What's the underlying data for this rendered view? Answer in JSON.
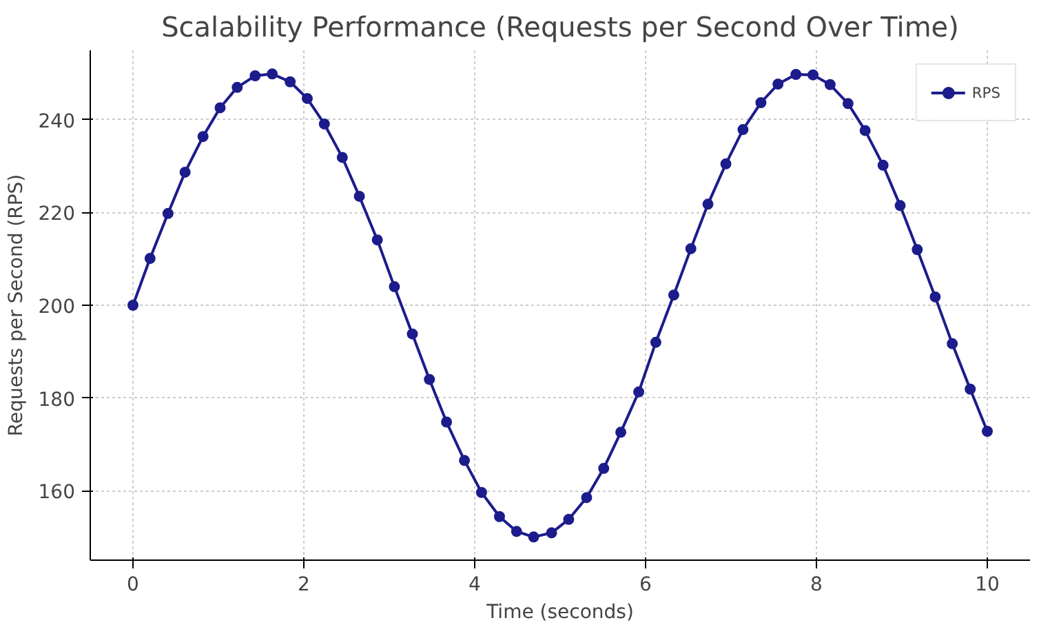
{
  "chart_data": {
    "type": "line",
    "title": "Scalability Performance (Requests per Second Over Time)",
    "xlabel": "Time (seconds)",
    "ylabel": "Requests per Second (RPS)",
    "x": [
      0,
      0.2,
      0.41,
      0.61,
      0.82,
      1.02,
      1.22,
      1.43,
      1.63,
      1.84,
      2.04,
      2.24,
      2.45,
      2.65,
      2.86,
      3.06,
      3.27,
      3.47,
      3.67,
      3.88,
      4.08,
      4.29,
      4.49,
      4.69,
      4.9,
      5.1,
      5.31,
      5.51,
      5.71,
      5.92,
      6.12,
      6.33,
      6.53,
      6.73,
      6.94,
      7.14,
      7.35,
      7.55,
      7.76,
      7.96,
      8.16,
      8.37,
      8.57,
      8.78,
      8.98,
      9.18,
      9.39,
      9.59,
      9.8,
      10
    ],
    "series": [
      {
        "name": "RPS",
        "color": "#1c1c8c",
        "values": [
          200,
          210.1,
          219.8,
          228.7,
          236.4,
          242.6,
          247,
          249.5,
          249.9,
          248.2,
          244.6,
          239.1,
          231.9,
          223.5,
          214.1,
          204,
          193.8,
          184,
          174.8,
          166.5,
          159.6,
          154.4,
          151.2,
          150,
          150.9,
          153.8,
          158.5,
          164.8,
          172.6,
          181.3,
          192,
          202.2,
          212.2,
          221.8,
          230.5,
          237.9,
          243.7,
          247.7,
          249.8,
          249.7,
          247.6,
          243.5,
          237.7,
          230.2,
          221.5,
          212,
          201.8,
          191.7,
          181.9,
          172.8
        ]
      }
    ],
    "xlim": [
      -0.5,
      10.5
    ],
    "ylim": [
      145,
      255
    ],
    "xticks": [
      0,
      2,
      4,
      6,
      8,
      10
    ],
    "yticks": [
      160,
      180,
      200,
      220,
      240
    ],
    "grid": true,
    "legend": "top right",
    "marker": "circle",
    "line_style": "solid"
  }
}
